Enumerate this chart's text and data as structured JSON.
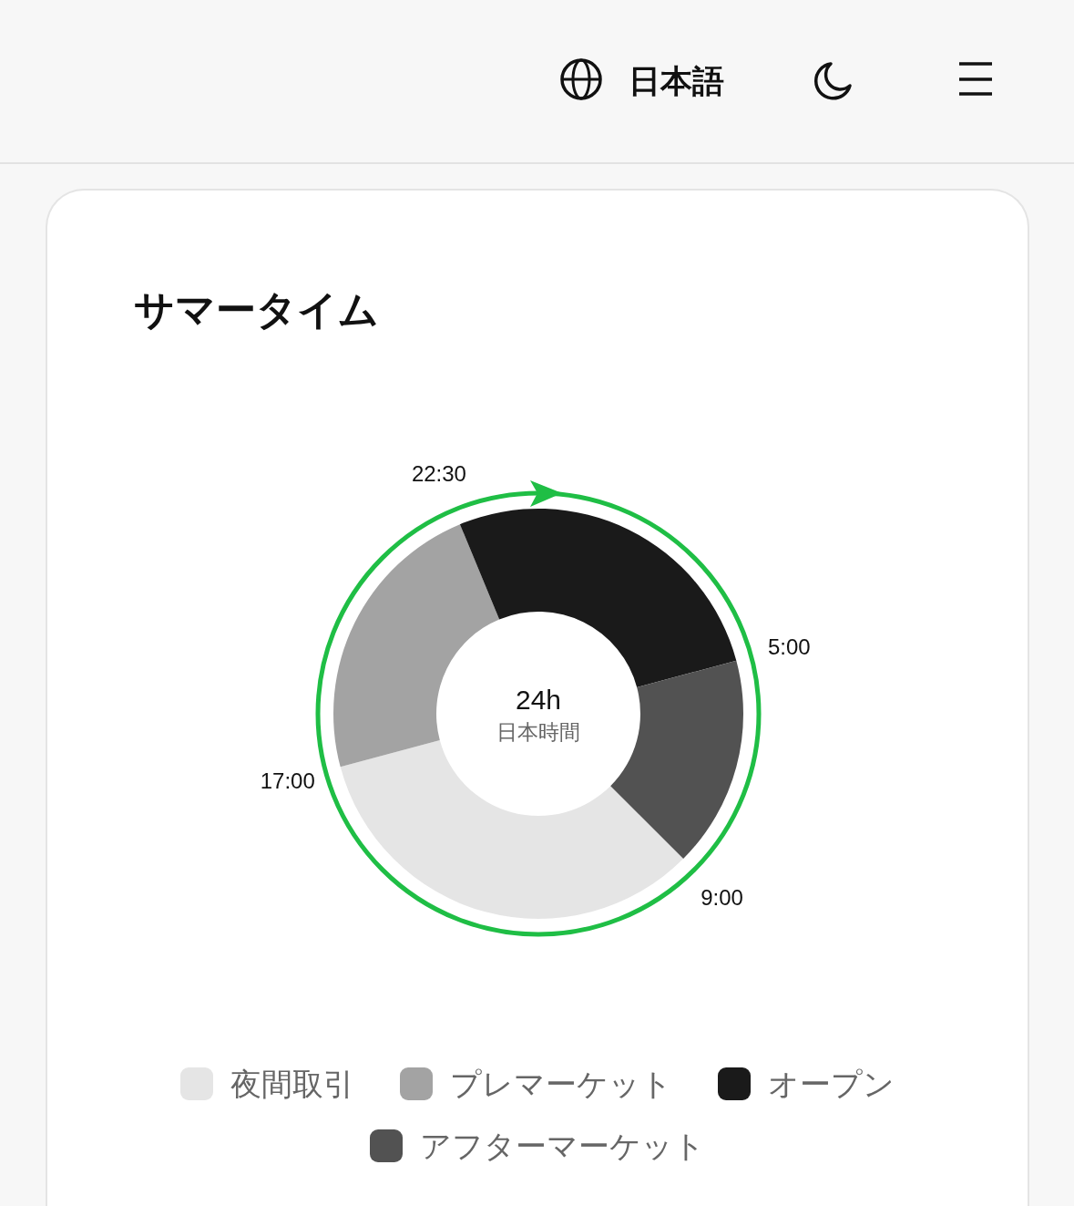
{
  "chart_data": {
    "type": "donut",
    "title": "サマータイム",
    "categories": [
      "夜間取引",
      "プレマーケット",
      "オープン",
      "アフターマーケット"
    ],
    "values": [
      33.33,
      22.92,
      27.08,
      16.67
    ],
    "colors": [
      "#e5e5e5",
      "#a3a3a3",
      "#1a1a1a",
      "#525252"
    ],
    "legend": "bottom",
    "annotations": [
      "17:00",
      "22:30",
      "5:00",
      "9:00",
      "24h",
      "日本時間",
      "日本語"
    ]
  }
}
